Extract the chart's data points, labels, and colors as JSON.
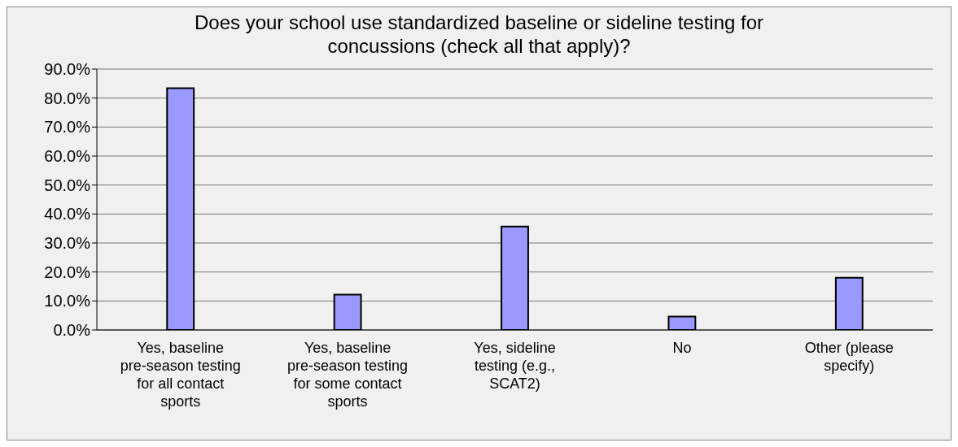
{
  "chart_data": {
    "type": "bar",
    "title": "Does your school use standardized baseline or sideline testing for concussions (check all that apply)?",
    "categories": [
      "Yes, baseline pre-season testing for all contact sports",
      "Yes, baseline pre-season testing for some contact sports",
      "Yes, sideline testing (e.g., SCAT2)",
      "No",
      "Other (please specify)"
    ],
    "values": [
      83.4,
      12.2,
      35.7,
      4.6,
      18.0
    ],
    "color": "#9999ff",
    "ylim": [
      0,
      90
    ],
    "yticks": [
      {
        "value": 0,
        "label": "0.0%"
      },
      {
        "value": 10,
        "label": "10.0%"
      },
      {
        "value": 20,
        "label": "20.0%"
      },
      {
        "value": 30,
        "label": "30.0%"
      },
      {
        "value": 40,
        "label": "40.0%"
      },
      {
        "value": 50,
        "label": "50.0%"
      },
      {
        "value": 60,
        "label": "60.0%"
      },
      {
        "value": 70,
        "label": "70.0%"
      },
      {
        "value": 80,
        "label": "80.0%"
      },
      {
        "value": 90,
        "label": "90.0%"
      }
    ],
    "grid": "y",
    "legend": false
  }
}
